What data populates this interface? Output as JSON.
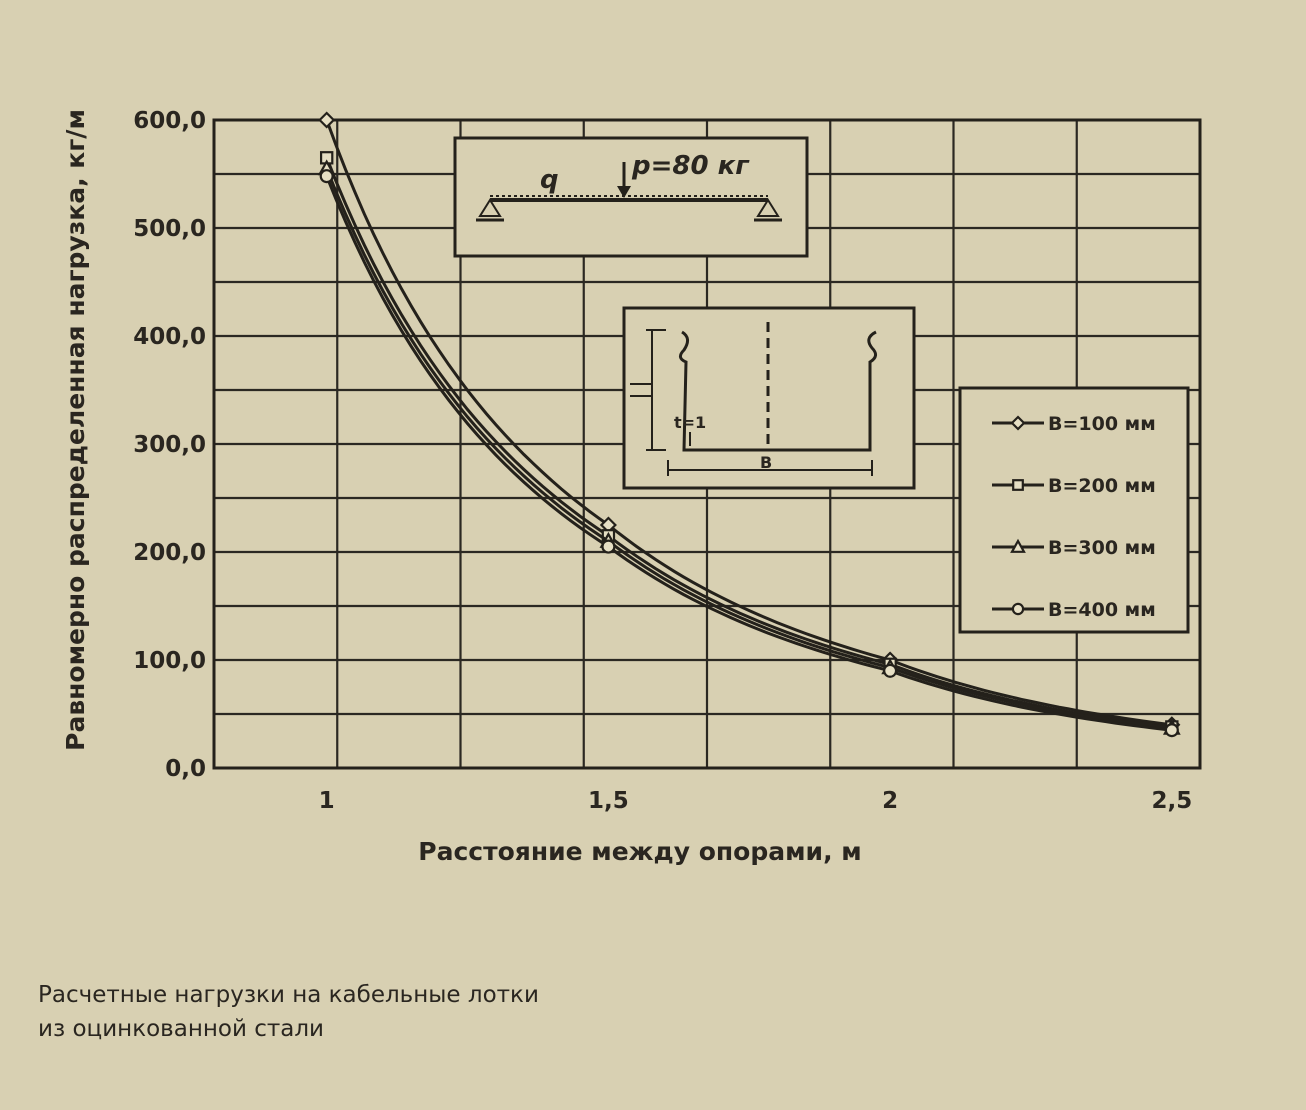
{
  "chart_data": {
    "type": "line",
    "xlabel": "Расстояние между опорами, м",
    "ylabel": "Равномерно распределенная нагрузка, кг/м",
    "xlim": [
      0.8,
      2.55
    ],
    "ylim": [
      0,
      600
    ],
    "x_ticks": [
      1,
      1.5,
      2,
      2.5
    ],
    "x_tick_labels": [
      "1",
      "1,5",
      "2",
      "2,5"
    ],
    "y_ticks": [
      0,
      100,
      200,
      300,
      400,
      500,
      600
    ],
    "y_tick_labels": [
      "0,0",
      "100,0",
      "200,0",
      "300,0",
      "400,0",
      "500,0",
      "600,0"
    ],
    "grid": true,
    "legend_position": "right",
    "series": [
      {
        "name": "B=100 мм",
        "marker": "diamond",
        "x": [
          1,
          1.5,
          2,
          2.5
        ],
        "y": [
          600,
          225,
          100,
          40
        ]
      },
      {
        "name": "B=200 мм",
        "marker": "square",
        "x": [
          1,
          1.5,
          2,
          2.5
        ],
        "y": [
          565,
          215,
          96,
          38
        ]
      },
      {
        "name": "B=300 мм",
        "marker": "triangle",
        "x": [
          1,
          1.5,
          2,
          2.5
        ],
        "y": [
          555,
          210,
          93,
          37
        ]
      },
      {
        "name": "B=400 мм",
        "marker": "circle",
        "x": [
          1,
          1.5,
          2,
          2.5
        ],
        "y": [
          548,
          205,
          90,
          35
        ]
      }
    ]
  },
  "inset_load": {
    "q_label": "q",
    "p_label": "p=80 кг"
  },
  "inset_profile": {
    "t_label": "t=1",
    "b_label": "B"
  },
  "caption": {
    "line1": "Расчетные нагрузки на кабельные лотки",
    "line2": "из оцинкованной стали"
  }
}
